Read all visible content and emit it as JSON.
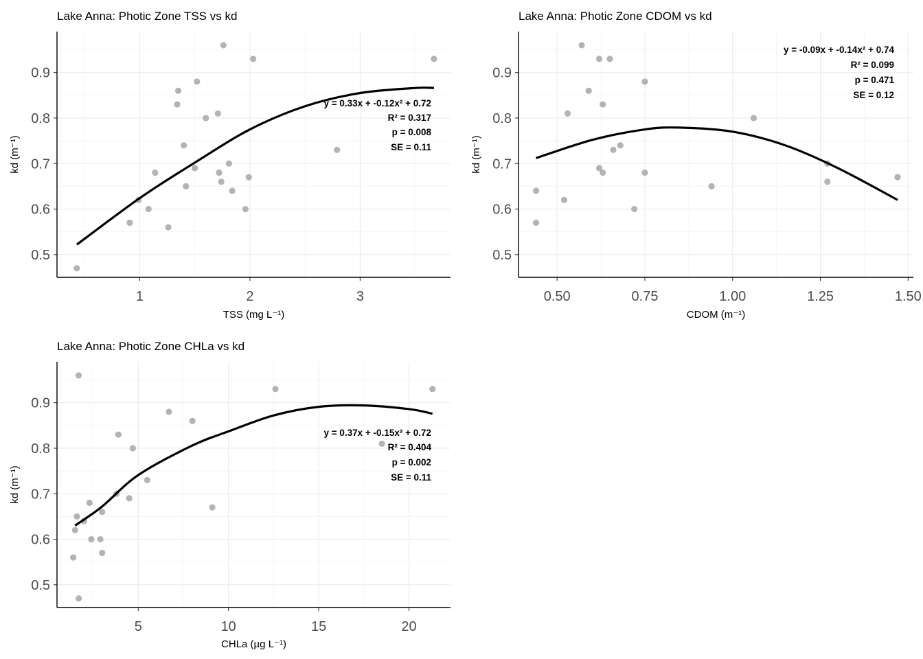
{
  "chart_data": [
    {
      "type": "scatter",
      "title": "Lake Anna: Photic Zone TSS vs kd",
      "xlabel": "TSS (mg L⁻¹)",
      "ylabel": "kd (m⁻¹)",
      "xlim": [
        0.25,
        3.82
      ],
      "ylim": [
        0.45,
        0.99
      ],
      "xticks": [
        1,
        2,
        3
      ],
      "xtick_labels": [
        "1",
        "2",
        "3"
      ],
      "yticks": [
        0.5,
        0.6,
        0.7,
        0.8,
        0.9
      ],
      "ytick_labels": [
        "0.5",
        "0.6",
        "0.7",
        "0.8",
        "0.9"
      ],
      "grid": true,
      "points": [
        [
          0.43,
          0.47
        ],
        [
          0.91,
          0.57
        ],
        [
          0.99,
          0.62
        ],
        [
          1.08,
          0.6
        ],
        [
          1.14,
          0.68
        ],
        [
          1.26,
          0.56
        ],
        [
          1.34,
          0.83
        ],
        [
          1.35,
          0.86
        ],
        [
          1.4,
          0.74
        ],
        [
          1.42,
          0.65
        ],
        [
          1.5,
          0.69
        ],
        [
          1.52,
          0.88
        ],
        [
          1.6,
          0.8
        ],
        [
          1.71,
          0.81
        ],
        [
          1.72,
          0.68
        ],
        [
          1.74,
          0.66
        ],
        [
          1.76,
          0.96
        ],
        [
          1.81,
          0.7
        ],
        [
          1.84,
          0.64
        ],
        [
          1.96,
          0.6
        ],
        [
          1.99,
          0.67
        ],
        [
          2.03,
          0.93
        ],
        [
          2.79,
          0.73
        ],
        [
          3.67,
          0.93
        ]
      ],
      "fit": {
        "type": "quadratic",
        "points": [
          [
            0.43,
            0.522
          ],
          [
            1.0,
            0.624
          ],
          [
            1.5,
            0.702
          ],
          [
            2.0,
            0.775
          ],
          [
            2.5,
            0.826
          ],
          [
            3.0,
            0.855
          ],
          [
            3.5,
            0.866
          ],
          [
            3.67,
            0.866
          ]
        ]
      },
      "annotations": [
        "y = 0.33x + -0.12x² + 0.72",
        "R² = 0.317",
        "p = 0.008",
        "SE = 0.11"
      ]
    },
    {
      "type": "scatter",
      "title": "Lake Anna: Photic Zone CDOM vs kd",
      "xlabel": "CDOM (m⁻¹)",
      "ylabel": "kd (m⁻¹)",
      "xlim": [
        0.39,
        1.515
      ],
      "ylim": [
        0.45,
        0.99
      ],
      "xticks": [
        0.5,
        0.75,
        1.0,
        1.25,
        1.5
      ],
      "xtick_labels": [
        "0.50",
        "0.75",
        "1.00",
        "1.25",
        "1.50"
      ],
      "yticks": [
        0.5,
        0.6,
        0.7,
        0.8,
        0.9
      ],
      "ytick_labels": [
        "0.5",
        "0.6",
        "0.7",
        "0.8",
        "0.9"
      ],
      "grid": true,
      "points": [
        [
          0.44,
          0.64
        ],
        [
          0.44,
          0.57
        ],
        [
          0.52,
          0.62
        ],
        [
          0.53,
          0.81
        ],
        [
          0.57,
          0.96
        ],
        [
          0.59,
          0.86
        ],
        [
          0.62,
          0.93
        ],
        [
          0.62,
          0.69
        ],
        [
          0.63,
          0.83
        ],
        [
          0.63,
          0.68
        ],
        [
          0.65,
          0.93
        ],
        [
          0.66,
          0.73
        ],
        [
          0.68,
          0.74
        ],
        [
          0.72,
          0.6
        ],
        [
          0.75,
          0.88
        ],
        [
          0.75,
          0.68
        ],
        [
          0.94,
          0.65
        ],
        [
          1.06,
          0.8
        ],
        [
          1.27,
          0.7
        ],
        [
          1.27,
          0.66
        ],
        [
          1.47,
          0.67
        ]
      ],
      "fit": {
        "type": "quadratic",
        "points": [
          [
            0.44,
            0.712
          ],
          [
            0.6,
            0.752
          ],
          [
            0.75,
            0.775
          ],
          [
            0.85,
            0.779
          ],
          [
            1.0,
            0.77
          ],
          [
            1.15,
            0.74
          ],
          [
            1.3,
            0.69
          ],
          [
            1.47,
            0.62
          ]
        ]
      },
      "annotations": [
        "y = -0.09x + -0.14x² + 0.74",
        "R² = 0.099",
        "p = 0.471",
        "SE = 0.12"
      ]
    },
    {
      "type": "scatter",
      "title": "Lake Anna: Photic Zone CHLa vs kd",
      "xlabel": "CHLa (µg L⁻¹)",
      "ylabel": "kd (m⁻¹)",
      "xlim": [
        0.5,
        22.3
      ],
      "ylim": [
        0.45,
        0.99
      ],
      "xticks": [
        5,
        10,
        15,
        20
      ],
      "xtick_labels": [
        "5",
        "10",
        "15",
        "20"
      ],
      "yticks": [
        0.5,
        0.6,
        0.7,
        0.8,
        0.9
      ],
      "ytick_labels": [
        "0.5",
        "0.6",
        "0.7",
        "0.8",
        "0.9"
      ],
      "grid": true,
      "points": [
        [
          1.4,
          0.56
        ],
        [
          1.5,
          0.62
        ],
        [
          1.6,
          0.65
        ],
        [
          1.7,
          0.96
        ],
        [
          1.7,
          0.47
        ],
        [
          2.0,
          0.64
        ],
        [
          2.3,
          0.68
        ],
        [
          2.4,
          0.6
        ],
        [
          2.9,
          0.6
        ],
        [
          3.0,
          0.66
        ],
        [
          3.0,
          0.57
        ],
        [
          3.8,
          0.7
        ],
        [
          3.9,
          0.83
        ],
        [
          4.5,
          0.69
        ],
        [
          4.7,
          0.8
        ],
        [
          5.5,
          0.73
        ],
        [
          6.7,
          0.88
        ],
        [
          8.0,
          0.86
        ],
        [
          9.1,
          0.67
        ],
        [
          12.6,
          0.93
        ],
        [
          18.5,
          0.81
        ],
        [
          21.3,
          0.93
        ]
      ],
      "fit": {
        "type": "quadratic",
        "points": [
          [
            1.5,
            0.63
          ],
          [
            3.0,
            0.672
          ],
          [
            5.0,
            0.741
          ],
          [
            8.0,
            0.806
          ],
          [
            10.0,
            0.837
          ],
          [
            12.5,
            0.872
          ],
          [
            15.0,
            0.891
          ],
          [
            17.5,
            0.894
          ],
          [
            20.0,
            0.886
          ],
          [
            21.3,
            0.876
          ]
        ]
      },
      "annotations": [
        "y = 0.37x + -0.15x² + 0.72",
        "R² = 0.404",
        "p = 0.002",
        "SE = 0.11"
      ]
    }
  ]
}
